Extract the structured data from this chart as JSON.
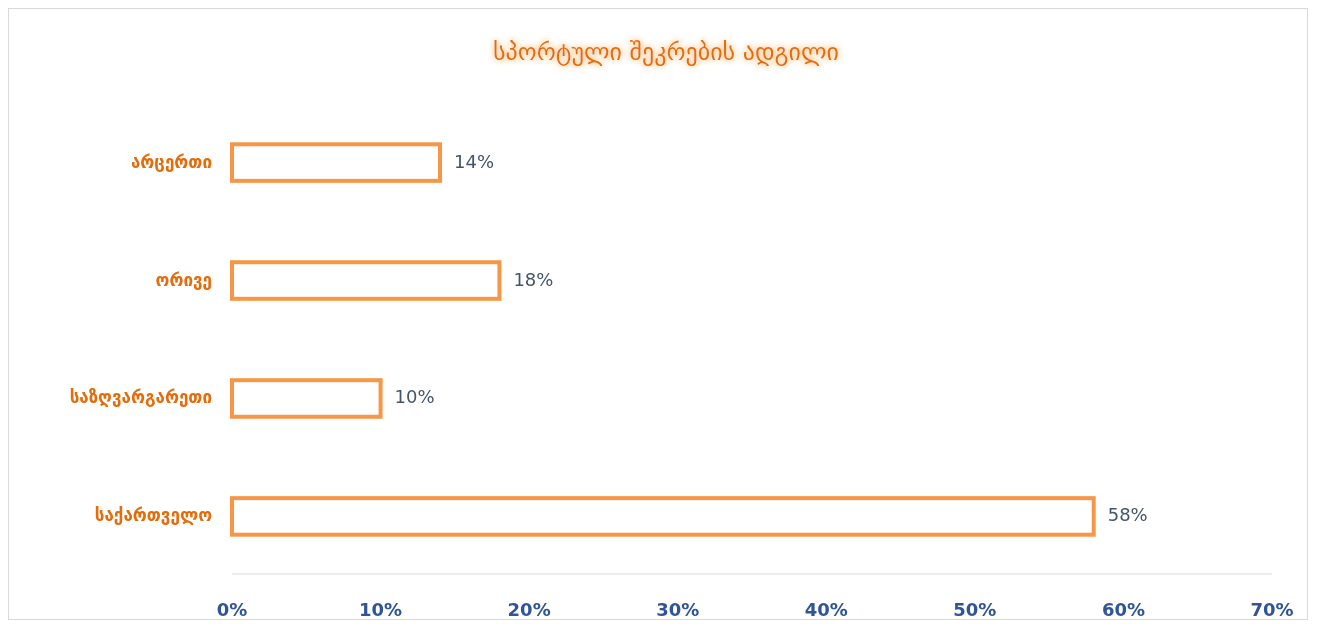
{
  "chart_data": {
    "type": "bar",
    "orientation": "horizontal",
    "title": "სპორტული შეკრების ადგილი",
    "categories": [
      "არცერთი",
      "ორივე",
      "საზღვარგარეთი",
      "საქართველო"
    ],
    "values": [
      14,
      18,
      10,
      58
    ],
    "value_labels": [
      "14%",
      "18%",
      "10%",
      "58%"
    ],
    "color": "#f79646",
    "xlim": [
      0,
      70
    ],
    "xticks": [
      {
        "value": 0,
        "label": "0%"
      },
      {
        "value": 10,
        "label": "10%"
      },
      {
        "value": 20,
        "label": "20%"
      },
      {
        "value": 30,
        "label": "30%"
      },
      {
        "value": 40,
        "label": "40%"
      },
      {
        "value": 50,
        "label": "50%"
      },
      {
        "value": 60,
        "label": "60%"
      },
      {
        "value": 70,
        "label": "70%"
      }
    ],
    "grid": false
  }
}
